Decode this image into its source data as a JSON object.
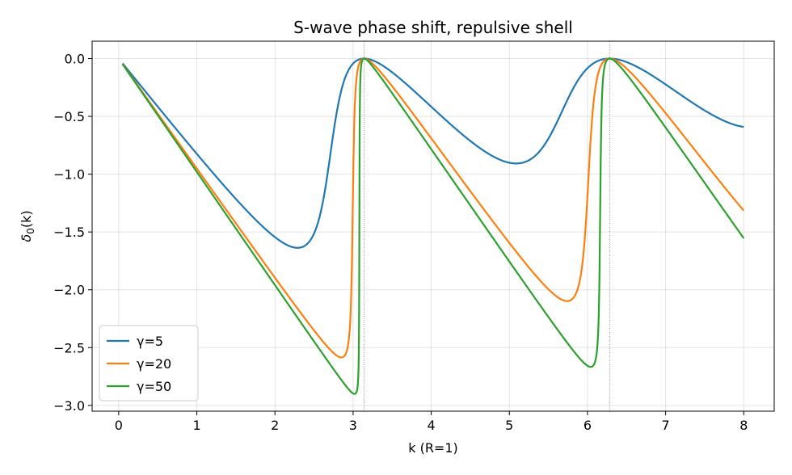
{
  "chart_data": {
    "type": "line",
    "title": "S-wave phase shift, repulsive shell",
    "xlabel": "k  (R=1)",
    "ylabel_base": "δ",
    "ylabel_sub": "0",
    "ylabel_tail": "(k)",
    "xlim": [
      -0.34,
      8.39
    ],
    "ylim": [
      -3.05,
      0.15
    ],
    "xticks": [
      0,
      1,
      2,
      3,
      4,
      5,
      6,
      7,
      8
    ],
    "yticks": [
      0.0,
      -0.5,
      -1.0,
      -1.5,
      -2.0,
      -2.5,
      -3.0
    ],
    "xtick_labels": [
      "0",
      "1",
      "2",
      "3",
      "4",
      "5",
      "6",
      "7",
      "8"
    ],
    "ytick_labels": [
      "0.0",
      "−0.5",
      "−1.0",
      "−1.5",
      "−2.0",
      "−2.5",
      "−3.0"
    ],
    "reference_lines_x": [
      3.1416,
      6.2832
    ],
    "grid": true,
    "legend_position": "lower-left",
    "x_range": [
      0.05,
      8.0
    ],
    "series": [
      {
        "name": "γ=5",
        "gamma": 5,
        "color": "#1f77b4"
      },
      {
        "name": "γ=20",
        "gamma": 20,
        "color": "#ff7f0e"
      },
      {
        "name": "γ=50",
        "gamma": 50,
        "color": "#2ca02c"
      }
    ]
  }
}
